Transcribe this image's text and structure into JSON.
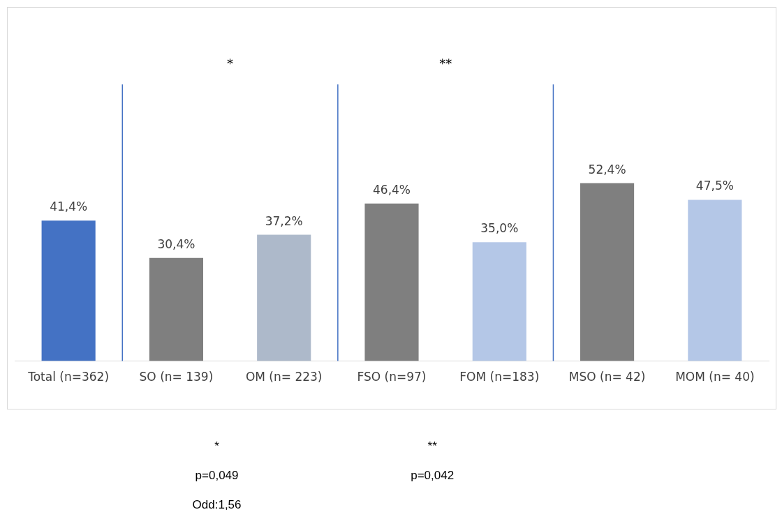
{
  "chart_data": {
    "type": "bar",
    "categories": [
      "Total (n=362)",
      "SO (n= 139)",
      "OM (n= 223)",
      "FSO (n=97)",
      "FOM (n=183)",
      "MSO (n= 42)",
      "MOM (n= 40)"
    ],
    "values": [
      41.4,
      30.4,
      37.2,
      46.4,
      35.0,
      52.4,
      47.5
    ],
    "value_labels": [
      "41,4%",
      "30,4%",
      "37,2%",
      "46,4%",
      "35,0%",
      "52,4%",
      "47,5%"
    ],
    "colors": [
      "#4472c4",
      "#7f7f7f",
      "#adb9ca",
      "#7f7f7f",
      "#b4c7e7",
      "#7f7f7f",
      "#b4c7e7"
    ],
    "annotations": [
      "*",
      "**",
      "*",
      "p=0,049",
      "Odd:1,56",
      "**",
      "p=0,042"
    ],
    "grid": false,
    "legend": false
  }
}
